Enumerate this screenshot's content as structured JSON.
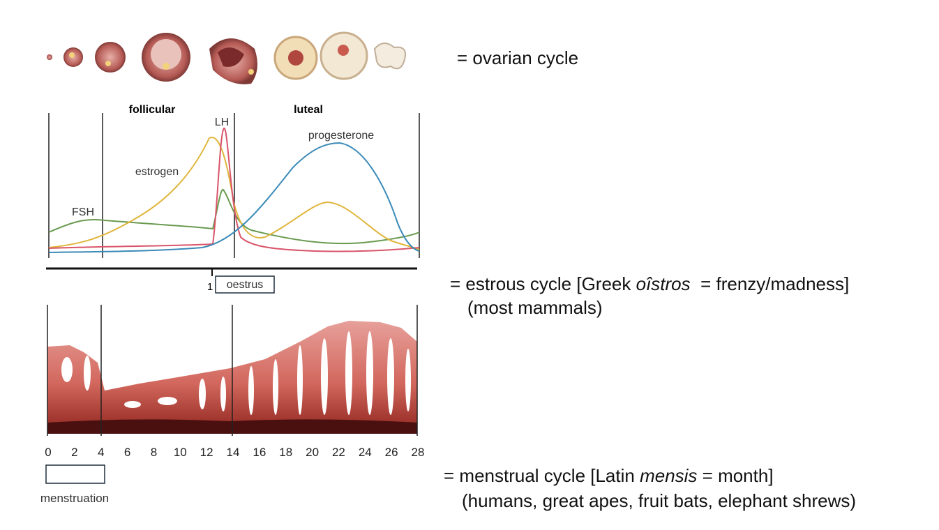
{
  "ovarian": {
    "label": "= ovarian cycle"
  },
  "hormones": {
    "phases": [
      "follicular",
      "luteal"
    ],
    "curves": [
      "FSH",
      "estrogen",
      "LH",
      "progesterone"
    ]
  },
  "estrous": {
    "marker": "1",
    "box": "oestrus",
    "line1": [
      "= estrous cycle [Greek ",
      "oîstros",
      "  = frenzy/madness]"
    ],
    "line2": "(most mammals)"
  },
  "menstrual": {
    "line1": [
      "= menstrual cycle [Latin ",
      "mensis",
      " = month]"
    ],
    "line2": "(humans, great apes, fruit bats, elephant shrews)"
  },
  "day_axis": {
    "lim": [
      0,
      28
    ],
    "ticks": [
      0,
      2,
      4,
      6,
      8,
      10,
      12,
      14,
      16,
      18,
      20,
      22,
      24,
      26,
      28
    ]
  },
  "menstruation": "menstruation"
}
